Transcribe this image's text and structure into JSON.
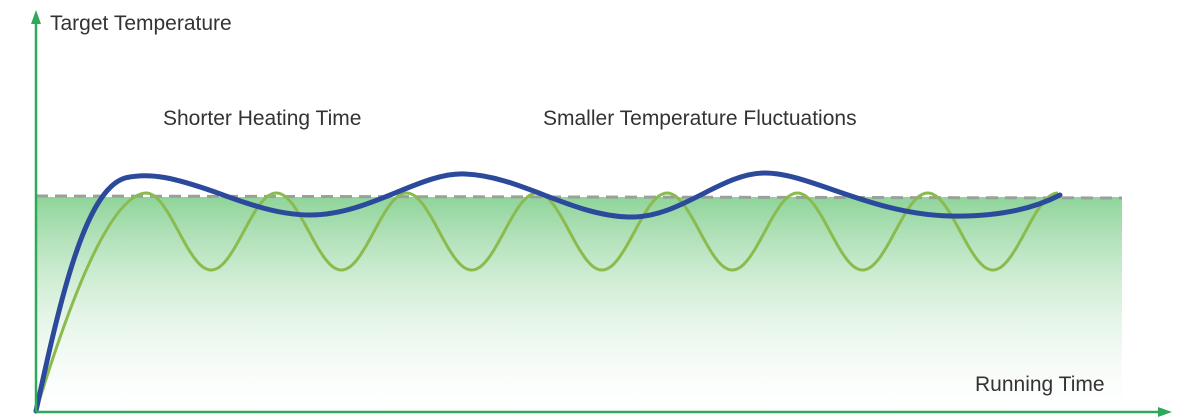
{
  "labels": {
    "y_axis": "Target Temperature",
    "x_axis": "Running Time",
    "callout_heating": "Shorter Heating Time",
    "callout_fluctuations": "Smaller Temperature Fluctuations"
  },
  "colors": {
    "axis": "#2fa85a",
    "fill_top": "#8fd49a",
    "fill_bottom": "#ffffff",
    "setpoint_dashed": "#9aa09a",
    "curve_blue": "#2c4a9c",
    "curve_green": "#8bbb4e"
  }
}
